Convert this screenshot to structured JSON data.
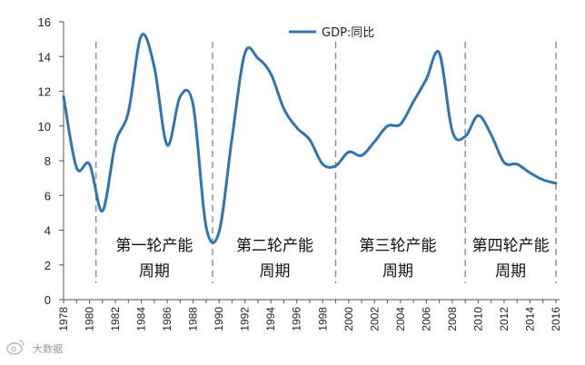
{
  "chart_data": {
    "type": "line",
    "title": "",
    "xlabel": "",
    "ylabel": "",
    "ylim": [
      0,
      16
    ],
    "xlim": [
      1978,
      2016
    ],
    "y_ticks": [
      "0",
      "2",
      "4",
      "6",
      "8",
      "10",
      "12",
      "14",
      "16"
    ],
    "x_ticks": [
      "1978",
      "1980",
      "1982",
      "1984",
      "1986",
      "1988",
      "1990",
      "1992",
      "1994",
      "1996",
      "1998",
      "2000",
      "2002",
      "2004",
      "2006",
      "2008",
      "2010",
      "2012",
      "2014",
      "2016"
    ],
    "legend_placement": "top",
    "grid": false,
    "series": [
      {
        "name": "GDP:同比",
        "color": "#2e75b6",
        "x": [
          1978,
          1979,
          1980,
          1981,
          1982,
          1983,
          1984,
          1985,
          1986,
          1987,
          1988,
          1989,
          1990,
          1991,
          1992,
          1993,
          1994,
          1995,
          1996,
          1997,
          1998,
          1999,
          2000,
          2001,
          2002,
          2003,
          2004,
          2005,
          2006,
          2007,
          2008,
          2009,
          2010,
          2011,
          2012,
          2013,
          2014,
          2015,
          2016
        ],
        "values": [
          11.7,
          7.6,
          7.8,
          5.1,
          9.0,
          10.8,
          15.2,
          13.4,
          8.9,
          11.7,
          11.2,
          4.2,
          3.9,
          9.3,
          14.2,
          13.9,
          13.0,
          11.0,
          9.9,
          9.2,
          7.8,
          7.7,
          8.5,
          8.3,
          9.1,
          10.0,
          10.1,
          11.4,
          12.7,
          14.2,
          9.7,
          9.4,
          10.6,
          9.5,
          7.9,
          7.8,
          7.3,
          6.9,
          6.7
        ]
      }
    ],
    "cycle_dividers": [
      1980.5,
      1989.5,
      1999,
      2009,
      2016
    ],
    "annotations": [
      {
        "line1": "第一轮产能",
        "line2": "周期",
        "x_center": 1985
      },
      {
        "line1": "第二轮产能",
        "line2": "周期",
        "x_center": 1994.3
      },
      {
        "line1": "第三轮产能",
        "line2": "周期",
        "x_center": 2003.8
      },
      {
        "line1": "第四轮产能",
        "line2": "周期",
        "x_center": 2012.5
      }
    ]
  },
  "watermark": {
    "text": "大数据",
    "icon": "weibo-logo-icon"
  }
}
